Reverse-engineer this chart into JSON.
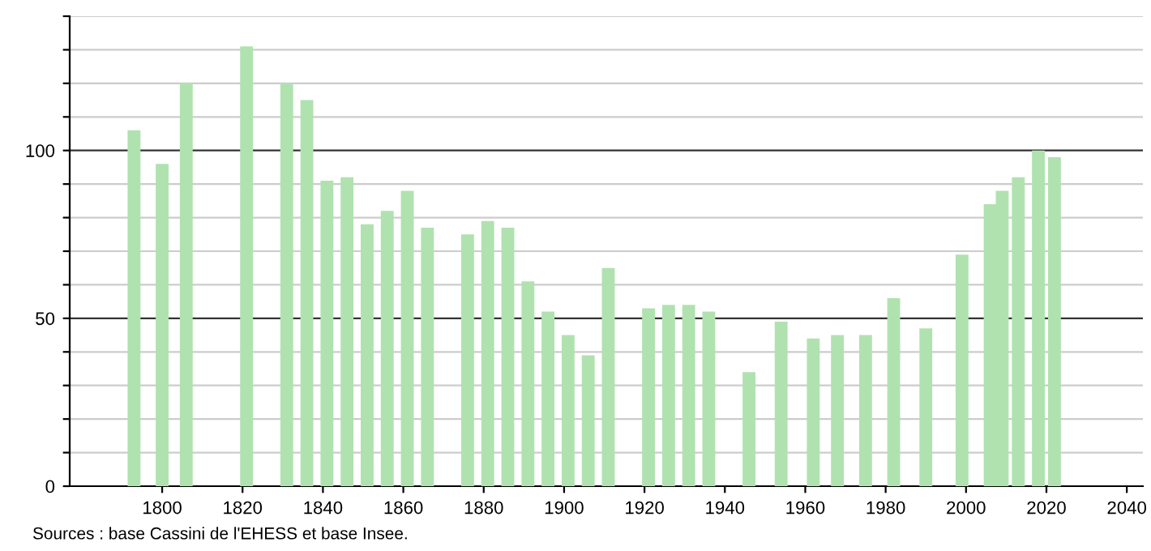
{
  "chart_data": {
    "type": "bar",
    "x": [
      1793,
      1800,
      1806,
      1821,
      1831,
      1836,
      1841,
      1846,
      1851,
      1856,
      1861,
      1866,
      1876,
      1881,
      1886,
      1891,
      1896,
      1901,
      1906,
      1911,
      1921,
      1926,
      1931,
      1936,
      1946,
      1954,
      1962,
      1968,
      1975,
      1982,
      1990,
      1999,
      2006,
      2009,
      2013,
      2018,
      2022
    ],
    "values": [
      106,
      96,
      120,
      131,
      120,
      115,
      91,
      92,
      78,
      82,
      88,
      77,
      75,
      79,
      77,
      61,
      52,
      45,
      39,
      65,
      53,
      54,
      54,
      52,
      34,
      49,
      44,
      45,
      45,
      56,
      47,
      69,
      84,
      88,
      92,
      100,
      98
    ],
    "color": "#b0e2b0",
    "xlim": [
      1777,
      2044
    ],
    "xticks": [
      1800,
      1820,
      1840,
      1860,
      1880,
      1900,
      1920,
      1940,
      1960,
      1980,
      2000,
      2020,
      2040
    ],
    "ylim": [
      0,
      140
    ],
    "yticks": [
      0,
      {
        "value": 10,
        "label": null
      },
      {
        "value": 20,
        "label": null
      },
      {
        "value": 30,
        "label": null
      },
      {
        "value": 40,
        "label": null
      },
      50,
      {
        "value": 60,
        "label": null
      },
      {
        "value": 70,
        "label": null
      },
      {
        "value": 80,
        "label": null
      },
      {
        "value": 90,
        "label": null
      },
      100,
      {
        "value": 110,
        "label": null
      },
      {
        "value": 120,
        "label": null
      },
      {
        "value": 130,
        "label": null
      },
      {
        "value": 140,
        "label": null
      }
    ],
    "grid": "y",
    "annotations": [
      "Sources : base Cassini de l'EHESS et base Insee."
    ]
  }
}
